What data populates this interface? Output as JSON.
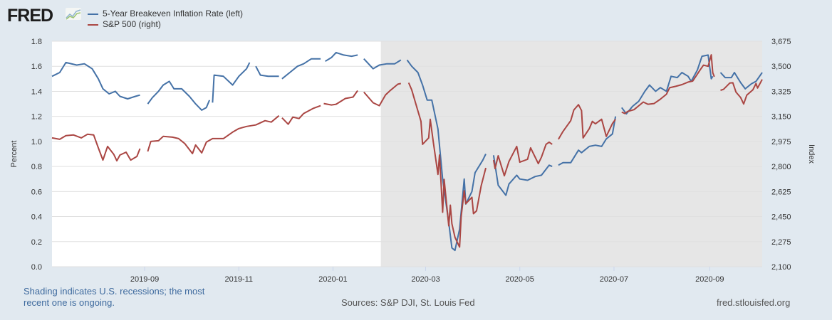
{
  "header": {
    "logo": "FRED"
  },
  "chart_data": {
    "type": "line",
    "xlim": [
      "2019-07-03",
      "2020-10-05"
    ],
    "x_ticks": [
      "2019-09",
      "2019-11",
      "2020-01",
      "2020-03",
      "2020-05",
      "2020-07",
      "2020-09"
    ],
    "ylabel": "Percent",
    "ylim": [
      0,
      1.8
    ],
    "y_ticks": [
      "0.0",
      "0.2",
      "0.4",
      "0.6",
      "0.8",
      "1.0",
      "1.2",
      "1.4",
      "1.6",
      "1.8"
    ],
    "y2label": "Index",
    "y2lim": [
      2100,
      3675
    ],
    "y2_ticks": [
      "2,100",
      "2,275",
      "2,450",
      "2,625",
      "2,800",
      "2,975",
      "3,150",
      "3,325",
      "3,500",
      "3,675"
    ],
    "grid": true,
    "legend_position": "top-left",
    "recession": {
      "start": "2020-02-01",
      "end": "2020-10-05",
      "note": "Shading indicates U.S. recessions; the most recent one is ongoing."
    },
    "series": [
      {
        "name": "5-Year Breakeven Inflation Rate (left)",
        "axis": "left",
        "color": "#4572a7",
        "values": [
          [
            "2019-07-03",
            1.52
          ],
          [
            "2019-07-08",
            1.55
          ],
          [
            "2019-07-12",
            1.63
          ],
          [
            "2019-07-19",
            1.61
          ],
          [
            "2019-07-24",
            1.62
          ],
          [
            "2019-07-29",
            1.58
          ],
          [
            "2019-08-02",
            1.5
          ],
          [
            "2019-08-05",
            1.42
          ],
          [
            "2019-08-09",
            1.38
          ],
          [
            "2019-08-13",
            1.4
          ],
          [
            "2019-08-16",
            1.36
          ],
          [
            "2019-08-21",
            1.34
          ],
          [
            "2019-08-26",
            1.36
          ],
          [
            "2019-08-29",
            1.37
          ],
          null,
          [
            "2019-09-03",
            1.3
          ],
          [
            "2019-09-06",
            1.35
          ],
          [
            "2019-09-10",
            1.4
          ],
          [
            "2019-09-13",
            1.45
          ],
          [
            "2019-09-17",
            1.48
          ],
          [
            "2019-09-20",
            1.42
          ],
          [
            "2019-09-25",
            1.42
          ],
          [
            "2019-09-30",
            1.36
          ],
          [
            "2019-10-04",
            1.3
          ],
          [
            "2019-10-08",
            1.25
          ],
          [
            "2019-10-11",
            1.27
          ],
          [
            "2019-10-13",
            1.33
          ],
          null,
          [
            "2019-10-15",
            1.31
          ],
          [
            "2019-10-16",
            1.53
          ],
          [
            "2019-10-22",
            1.52
          ],
          [
            "2019-10-28",
            1.45
          ],
          [
            "2019-11-01",
            1.52
          ],
          [
            "2019-11-06",
            1.58
          ],
          [
            "2019-11-08",
            1.63
          ],
          null,
          [
            "2019-11-12",
            1.6
          ],
          [
            "2019-11-15",
            1.53
          ],
          [
            "2019-11-20",
            1.52
          ],
          [
            "2019-11-27",
            1.52
          ],
          null,
          [
            "2019-11-29",
            1.5
          ],
          [
            "2019-12-04",
            1.55
          ],
          [
            "2019-12-09",
            1.6
          ],
          [
            "2019-12-13",
            1.62
          ],
          [
            "2019-12-18",
            1.66
          ],
          [
            "2019-12-24",
            1.66
          ],
          null,
          [
            "2019-12-27",
            1.64
          ],
          [
            "2019-12-31",
            1.67
          ],
          [
            "2020-01-03",
            1.71
          ],
          [
            "2020-01-08",
            1.69
          ],
          [
            "2020-01-13",
            1.68
          ],
          [
            "2020-01-17",
            1.69
          ],
          null,
          [
            "2020-01-21",
            1.66
          ],
          [
            "2020-01-27",
            1.58
          ],
          [
            "2020-01-31",
            1.61
          ],
          [
            "2020-02-05",
            1.62
          ],
          [
            "2020-02-10",
            1.62
          ],
          [
            "2020-02-14",
            1.65
          ],
          null,
          [
            "2020-02-18",
            1.65
          ],
          [
            "2020-02-21",
            1.6
          ],
          [
            "2020-02-25",
            1.55
          ],
          [
            "2020-02-28",
            1.45
          ],
          [
            "2020-03-02",
            1.33
          ],
          [
            "2020-03-05",
            1.33
          ],
          [
            "2020-03-09",
            1.1
          ],
          [
            "2020-03-12",
            0.7
          ],
          [
            "2020-03-16",
            0.35
          ],
          [
            "2020-03-18",
            0.15
          ],
          [
            "2020-03-20",
            0.13
          ],
          [
            "2020-03-23",
            0.3
          ],
          [
            "2020-03-26",
            0.7
          ],
          [
            "2020-03-27",
            0.5
          ],
          [
            "2020-03-31",
            0.6
          ],
          [
            "2020-04-02",
            0.75
          ],
          [
            "2020-04-07",
            0.85
          ],
          [
            "2020-04-09",
            0.9
          ],
          null,
          [
            "2020-04-14",
            0.89
          ],
          [
            "2020-04-17",
            0.65
          ],
          [
            "2020-04-22",
            0.57
          ],
          [
            "2020-04-24",
            0.66
          ],
          [
            "2020-04-29",
            0.73
          ],
          [
            "2020-05-01",
            0.7
          ],
          [
            "2020-05-06",
            0.69
          ],
          [
            "2020-05-11",
            0.72
          ],
          [
            "2020-05-15",
            0.73
          ],
          [
            "2020-05-20",
            0.81
          ],
          [
            "2020-05-22",
            0.8
          ],
          null,
          [
            "2020-05-26",
            0.81
          ],
          [
            "2020-05-29",
            0.83
          ],
          [
            "2020-06-03",
            0.83
          ],
          [
            "2020-06-08",
            0.93
          ],
          [
            "2020-06-10",
            0.91
          ],
          [
            "2020-06-15",
            0.96
          ],
          [
            "2020-06-19",
            0.97
          ],
          [
            "2020-06-23",
            0.96
          ],
          [
            "2020-06-26",
            1.02
          ],
          [
            "2020-06-30",
            1.06
          ],
          [
            "2020-07-02",
            1.2
          ],
          null,
          [
            "2020-07-06",
            1.27
          ],
          [
            "2020-07-09",
            1.22
          ],
          [
            "2020-07-13",
            1.28
          ],
          [
            "2020-07-17",
            1.32
          ],
          [
            "2020-07-21",
            1.4
          ],
          [
            "2020-07-24",
            1.45
          ],
          [
            "2020-07-28",
            1.4
          ],
          [
            "2020-07-31",
            1.43
          ],
          [
            "2020-08-04",
            1.4
          ],
          [
            "2020-08-07",
            1.52
          ],
          [
            "2020-08-11",
            1.51
          ],
          [
            "2020-08-14",
            1.55
          ],
          [
            "2020-08-18",
            1.52
          ],
          [
            "2020-08-20",
            1.48
          ],
          [
            "2020-08-24",
            1.57
          ],
          [
            "2020-08-27",
            1.68
          ],
          [
            "2020-08-31",
            1.69
          ],
          [
            "2020-09-02",
            1.5
          ],
          [
            "2020-09-03",
            1.52
          ],
          null,
          [
            "2020-09-08",
            1.55
          ],
          [
            "2020-09-11",
            1.51
          ],
          [
            "2020-09-15",
            1.51
          ],
          [
            "2020-09-17",
            1.55
          ],
          [
            "2020-09-21",
            1.47
          ],
          [
            "2020-09-24",
            1.42
          ],
          [
            "2020-09-28",
            1.46
          ],
          [
            "2020-10-01",
            1.48
          ],
          [
            "2020-10-05",
            1.55
          ]
        ]
      },
      {
        "name": "S&P 500 (right)",
        "axis": "right",
        "color": "#aa4643",
        "values": [
          [
            "2019-07-03",
            3000
          ],
          [
            "2019-07-08",
            2990
          ],
          [
            "2019-07-12",
            3015
          ],
          [
            "2019-07-17",
            3020
          ],
          [
            "2019-07-22",
            3000
          ],
          [
            "2019-07-26",
            3025
          ],
          [
            "2019-07-30",
            3020
          ],
          [
            "2019-08-02",
            2930
          ],
          [
            "2019-08-05",
            2845
          ],
          [
            "2019-08-08",
            2940
          ],
          [
            "2019-08-12",
            2885
          ],
          [
            "2019-08-14",
            2840
          ],
          [
            "2019-08-16",
            2880
          ],
          [
            "2019-08-20",
            2900
          ],
          [
            "2019-08-23",
            2845
          ],
          [
            "2019-08-27",
            2870
          ],
          [
            "2019-08-29",
            2925
          ],
          null,
          [
            "2019-09-03",
            2905
          ],
          [
            "2019-09-05",
            2975
          ],
          [
            "2019-09-10",
            2980
          ],
          [
            "2019-09-13",
            3010
          ],
          [
            "2019-09-19",
            3005
          ],
          [
            "2019-09-23",
            2995
          ],
          [
            "2019-09-27",
            2960
          ],
          [
            "2019-10-02",
            2890
          ],
          [
            "2019-10-04",
            2950
          ],
          [
            "2019-10-08",
            2895
          ],
          [
            "2019-10-11",
            2970
          ],
          [
            "2019-10-15",
            2995
          ],
          [
            "2019-10-22",
            2995
          ],
          [
            "2019-10-28",
            3040
          ],
          [
            "2019-11-01",
            3065
          ],
          [
            "2019-11-06",
            3080
          ],
          [
            "2019-11-12",
            3090
          ],
          [
            "2019-11-18",
            3120
          ],
          [
            "2019-11-22",
            3110
          ],
          [
            "2019-11-27",
            3155
          ],
          null,
          [
            "2019-11-29",
            3140
          ],
          [
            "2019-12-03",
            3095
          ],
          [
            "2019-12-06",
            3145
          ],
          [
            "2019-12-10",
            3135
          ],
          [
            "2019-12-13",
            3170
          ],
          [
            "2019-12-19",
            3205
          ],
          [
            "2019-12-24",
            3225
          ],
          null,
          [
            "2019-12-26",
            3240
          ],
          [
            "2019-12-31",
            3230
          ],
          [
            "2020-01-03",
            3235
          ],
          [
            "2020-01-09",
            3275
          ],
          [
            "2020-01-14",
            3285
          ],
          [
            "2020-01-17",
            3330
          ],
          null,
          [
            "2020-01-21",
            3320
          ],
          [
            "2020-01-27",
            3245
          ],
          [
            "2020-01-31",
            3225
          ],
          [
            "2020-02-04",
            3300
          ],
          [
            "2020-02-07",
            3330
          ],
          [
            "2020-02-12",
            3375
          ],
          [
            "2020-02-14",
            3380
          ],
          null,
          [
            "2020-02-19",
            3385
          ],
          [
            "2020-02-21",
            3335
          ],
          [
            "2020-02-24",
            3225
          ],
          [
            "2020-02-27",
            3115
          ],
          [
            "2020-02-28",
            2955
          ],
          [
            "2020-03-03",
            3000
          ],
          [
            "2020-03-04",
            3130
          ],
          [
            "2020-03-06",
            2970
          ],
          [
            "2020-03-09",
            2745
          ],
          [
            "2020-03-10",
            2880
          ],
          [
            "2020-03-12",
            2480
          ],
          [
            "2020-03-13",
            2710
          ],
          [
            "2020-03-16",
            2385
          ],
          [
            "2020-03-17",
            2530
          ],
          [
            "2020-03-18",
            2400
          ],
          [
            "2020-03-20",
            2305
          ],
          [
            "2020-03-23",
            2237
          ],
          [
            "2020-03-24",
            2450
          ],
          [
            "2020-03-26",
            2630
          ],
          [
            "2020-03-27",
            2540
          ],
          [
            "2020-03-31",
            2585
          ],
          [
            "2020-04-01",
            2470
          ],
          [
            "2020-04-03",
            2490
          ],
          [
            "2020-04-06",
            2665
          ],
          [
            "2020-04-09",
            2790
          ],
          null,
          [
            "2020-04-14",
            2845
          ],
          [
            "2020-04-15",
            2785
          ],
          [
            "2020-04-17",
            2875
          ],
          [
            "2020-04-21",
            2735
          ],
          [
            "2020-04-24",
            2835
          ],
          [
            "2020-04-29",
            2940
          ],
          [
            "2020-05-01",
            2830
          ],
          [
            "2020-05-06",
            2850
          ],
          [
            "2020-05-08",
            2930
          ],
          [
            "2020-05-13",
            2820
          ],
          [
            "2020-05-15",
            2865
          ],
          [
            "2020-05-18",
            2955
          ],
          [
            "2020-05-20",
            2970
          ],
          [
            "2020-05-22",
            2955
          ],
          null,
          [
            "2020-05-26",
            2990
          ],
          [
            "2020-05-29",
            3045
          ],
          [
            "2020-06-03",
            3120
          ],
          [
            "2020-06-05",
            3195
          ],
          [
            "2020-06-08",
            3232
          ],
          [
            "2020-06-10",
            3190
          ],
          [
            "2020-06-11",
            3000
          ],
          [
            "2020-06-15",
            3065
          ],
          [
            "2020-06-17",
            3115
          ],
          [
            "2020-06-19",
            3098
          ],
          [
            "2020-06-23",
            3130
          ],
          [
            "2020-06-26",
            3010
          ],
          [
            "2020-06-30",
            3100
          ],
          [
            "2020-07-02",
            3130
          ],
          null,
          [
            "2020-07-06",
            3180
          ],
          [
            "2020-07-08",
            3170
          ],
          [
            "2020-07-10",
            3185
          ],
          [
            "2020-07-14",
            3197
          ],
          [
            "2020-07-16",
            3215
          ],
          [
            "2020-07-20",
            3250
          ],
          [
            "2020-07-23",
            3235
          ],
          [
            "2020-07-27",
            3240
          ],
          [
            "2020-07-31",
            3270
          ],
          [
            "2020-08-04",
            3305
          ],
          [
            "2020-08-06",
            3350
          ],
          [
            "2020-08-10",
            3360
          ],
          [
            "2020-08-14",
            3372
          ],
          [
            "2020-08-18",
            3390
          ],
          [
            "2020-08-21",
            3397
          ],
          [
            "2020-08-26",
            3478
          ],
          [
            "2020-08-28",
            3508
          ],
          [
            "2020-08-31",
            3500
          ],
          [
            "2020-09-02",
            3580
          ],
          [
            "2020-09-03",
            3455
          ],
          [
            "2020-09-04",
            3427
          ],
          null,
          [
            "2020-09-08",
            3332
          ],
          [
            "2020-09-10",
            3339
          ],
          [
            "2020-09-14",
            3383
          ],
          [
            "2020-09-16",
            3385
          ],
          [
            "2020-09-18",
            3320
          ],
          [
            "2020-09-21",
            3282
          ],
          [
            "2020-09-23",
            3237
          ],
          [
            "2020-09-25",
            3298
          ],
          [
            "2020-09-29",
            3336
          ],
          [
            "2020-10-01",
            3380
          ],
          [
            "2020-10-02",
            3348
          ],
          [
            "2020-10-05",
            3408
          ]
        ]
      }
    ]
  },
  "footer": {
    "note": "Shading indicates U.S. recessions; the most recent one is ongoing.",
    "sources": "Sources: S&P DJI, St. Louis Fed",
    "site": "fred.stlouisfed.org"
  }
}
